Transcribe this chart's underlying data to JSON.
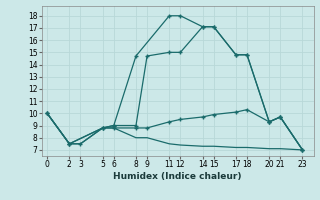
{
  "xlabel": "Humidex (Indice chaleur)",
  "bg_color": "#cce8e8",
  "grid_color": "#b8d8d8",
  "line_color": "#1a6b6b",
  "xlim": [
    -0.5,
    24
  ],
  "ylim": [
    6.5,
    18.8
  ],
  "xticks": [
    0,
    2,
    3,
    5,
    6,
    8,
    9,
    11,
    12,
    14,
    15,
    17,
    18,
    20,
    21,
    23
  ],
  "yticks": [
    7,
    8,
    9,
    10,
    11,
    12,
    13,
    14,
    15,
    16,
    17,
    18
  ],
  "lines": [
    {
      "x": [
        0,
        2,
        5,
        6,
        8,
        11,
        12,
        14,
        15,
        17,
        18,
        20,
        21,
        23
      ],
      "y": [
        10,
        7.5,
        8.8,
        9.0,
        14.7,
        18.0,
        18.0,
        17.1,
        17.1,
        14.8,
        14.8,
        9.3,
        9.7,
        7.0
      ],
      "marker": "+"
    },
    {
      "x": [
        0,
        2,
        5,
        6,
        8,
        9,
        11,
        12,
        14,
        15,
        17,
        18,
        20,
        21,
        23
      ],
      "y": [
        10,
        7.5,
        8.8,
        9.0,
        9.0,
        14.7,
        15.0,
        15.0,
        17.1,
        17.1,
        14.8,
        14.8,
        9.3,
        9.7,
        7.0
      ],
      "marker": "+"
    },
    {
      "x": [
        0,
        2,
        3,
        5,
        6,
        8,
        9,
        11,
        12,
        14,
        15,
        17,
        18,
        20,
        21,
        23
      ],
      "y": [
        10,
        7.5,
        7.5,
        8.8,
        8.8,
        8.8,
        8.8,
        9.3,
        9.5,
        9.7,
        9.9,
        10.1,
        10.3,
        9.3,
        9.7,
        7.0
      ],
      "marker": "+"
    },
    {
      "x": [
        0,
        2,
        3,
        5,
        6,
        8,
        9,
        11,
        12,
        14,
        15,
        17,
        18,
        20,
        21,
        23
      ],
      "y": [
        10,
        7.5,
        7.5,
        8.8,
        8.8,
        8.0,
        8.0,
        7.5,
        7.4,
        7.3,
        7.3,
        7.2,
        7.2,
        7.1,
        7.1,
        7.0
      ],
      "marker": null
    }
  ]
}
